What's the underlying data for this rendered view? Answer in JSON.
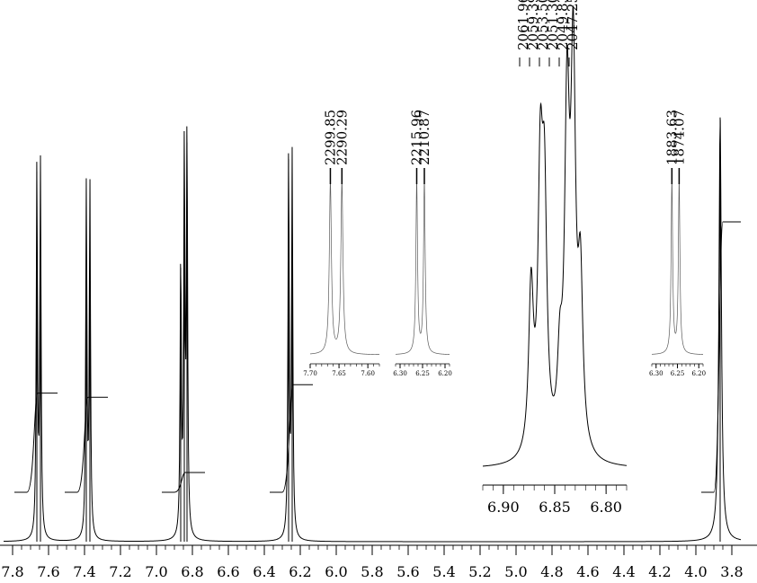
{
  "chart_data": {
    "type": "line",
    "main": {
      "x_range": [
        7.8,
        3.8
      ],
      "ticks": [
        "7.8",
        "7.6",
        "7.4",
        "7.2",
        "7.0",
        "6.8",
        "6.6",
        "6.4",
        "6.2",
        "6.0",
        "5.8",
        "5.6",
        "5.4",
        "5.2",
        "5.0",
        "4.8",
        "4.6",
        "4.4",
        "4.2",
        "4.0",
        "3.8"
      ],
      "peaks": [
        {
          "ppm": 7.665,
          "height": 0.89,
          "width": 0.004
        },
        {
          "ppm": 7.645,
          "height": 0.89,
          "width": 0.004
        },
        {
          "ppm": 7.39,
          "height": 0.84,
          "width": 0.004
        },
        {
          "ppm": 7.37,
          "height": 0.84,
          "width": 0.004
        },
        {
          "ppm": 6.865,
          "height": 0.66,
          "width": 0.004
        },
        {
          "ppm": 6.845,
          "height": 0.91,
          "width": 0.004
        },
        {
          "ppm": 6.83,
          "height": 0.96,
          "width": 0.004
        },
        {
          "ppm": 6.265,
          "height": 0.92,
          "width": 0.004
        },
        {
          "ppm": 6.245,
          "height": 0.91,
          "width": 0.004
        },
        {
          "ppm": 3.865,
          "height": 1.02,
          "width": 0.008
        }
      ],
      "integrals": [
        {
          "from": 7.72,
          "to": 7.62,
          "step_low": 0.53,
          "step_high": 0.36
        },
        {
          "from": 7.44,
          "to": 7.34,
          "step_low": 0.53,
          "step_high": 0.35
        },
        {
          "from": 6.9,
          "to": 6.8,
          "step_low": 0.53,
          "step_high": 0.17
        },
        {
          "from": 6.3,
          "to": 6.2,
          "step_low": 0.53,
          "step_high": 0.38
        },
        {
          "from": 3.9,
          "to": 3.82,
          "step_low": 0.53,
          "step_high": -0.15
        }
      ]
    },
    "insets": [
      {
        "id": "inset-765",
        "x_range": [
          7.7,
          7.58
        ],
        "ticks": [
          "7.70",
          "7.65",
          "7.60"
        ],
        "peak_labels": [
          "2299.85",
          "2290.29"
        ],
        "peaks": [
          {
            "ppm": 7.665,
            "height": 1.0
          },
          {
            "ppm": 7.645,
            "height": 1.0
          }
        ]
      },
      {
        "id": "inset-625a",
        "x_range": [
          6.31,
          6.19
        ],
        "ticks": [
          "6.30",
          "6.25",
          "6.20"
        ],
        "peak_labels": [
          "2215.96",
          "2210.87"
        ],
        "peaks": [
          {
            "ppm": 6.263,
            "height": 1.0
          },
          {
            "ppm": 6.246,
            "height": 1.0
          }
        ]
      },
      {
        "id": "inset-685",
        "x_range": [
          6.92,
          6.78
        ],
        "ticks": [
          "6.90",
          "6.85",
          "6.80"
        ],
        "peak_labels": [
          "2061.96",
          "2059.39",
          "2053.50",
          "2051.30",
          "2049.83",
          "2047.25"
        ],
        "peaks": [
          {
            "ppm": 6.873,
            "height": 0.42
          },
          {
            "ppm": 6.864,
            "height": 0.67
          },
          {
            "ppm": 6.86,
            "height": 0.6
          },
          {
            "ppm": 6.845,
            "height": 0.2
          },
          {
            "ppm": 6.838,
            "height": 0.85
          },
          {
            "ppm": 6.832,
            "height": 0.96
          },
          {
            "ppm": 6.825,
            "height": 0.42
          }
        ]
      },
      {
        "id": "inset-625b",
        "x_range": [
          6.31,
          6.19
        ],
        "ticks": [
          "6.30",
          "6.25",
          "6.20"
        ],
        "peak_labels": [
          "1883.63",
          "1874.07"
        ],
        "peaks": [
          {
            "ppm": 6.263,
            "height": 1.0
          },
          {
            "ppm": 6.246,
            "height": 1.0
          }
        ]
      }
    ]
  }
}
